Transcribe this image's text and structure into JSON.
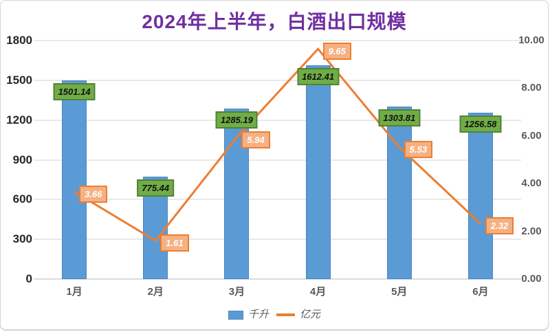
{
  "title": "2024年上半年，白酒出口规模",
  "colors": {
    "title": "#7030A0",
    "bar_fill": "#5B9BD5",
    "bar_border": "#4A86C0",
    "bar_label_bg": "#70AD47",
    "bar_label_border": "#538135",
    "bar_label_text": "#111111",
    "line": "#ED7D31",
    "line_label_bg": "#F6B183",
    "line_label_border": "#ED7D31",
    "line_label_text": "#FFFFFF",
    "grid": "#E9E9E9",
    "axis_line": "#DCDCDC",
    "axis_text_left": "#262626",
    "axis_text_right": "#595959",
    "axis_text_x": "#595959",
    "legend_text": "#595959"
  },
  "chart_data": {
    "type": "bar+line combo",
    "title": "2024年上半年，白酒出口规模",
    "categories": [
      "1月",
      "2月",
      "3月",
      "4月",
      "5月",
      "6月"
    ],
    "series": [
      {
        "name": "千升",
        "type": "bar",
        "axis": "left",
        "values": [
          1501.14,
          775.44,
          1285.19,
          1612.41,
          1303.81,
          1256.58
        ]
      },
      {
        "name": "亿元",
        "type": "line",
        "axis": "right",
        "values": [
          3.66,
          1.61,
          5.94,
          9.65,
          5.53,
          2.32
        ]
      }
    ],
    "left_axis": {
      "min": 0,
      "max": 1800,
      "step": 300,
      "ticks": [
        "0",
        "300",
        "600",
        "900",
        "1200",
        "1500",
        "1800"
      ]
    },
    "right_axis": {
      "min": 0,
      "max": 10,
      "step": 2,
      "ticks": [
        "0.00",
        "2.00",
        "4.00",
        "6.00",
        "8.00",
        "10.00"
      ]
    },
    "grid": true,
    "legend_position": "bottom",
    "data_labels": true
  },
  "legend": {
    "items": [
      {
        "label": "千升",
        "swatch": "blue-bar-swatch"
      },
      {
        "label": "亿元",
        "swatch": "orange-line-swatch"
      }
    ]
  }
}
